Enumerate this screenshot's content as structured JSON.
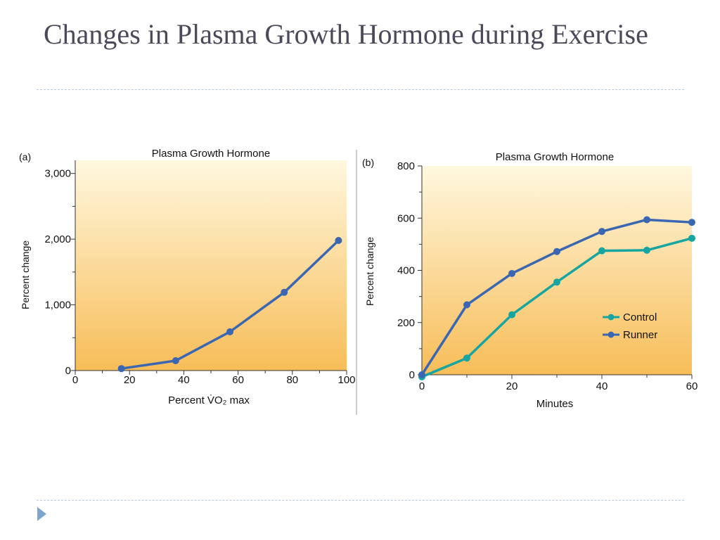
{
  "slide": {
    "title": "Changes in Plasma Growth Hormone during Exercise"
  },
  "chart_data": [
    {
      "type": "line",
      "panel_label": "(a)",
      "title": "Plasma Growth Hormone",
      "xlabel": "Percent V̇O₂ max",
      "ylabel": "Percent change",
      "xlim": [
        0,
        100
      ],
      "ylim": [
        0,
        3200
      ],
      "x_ticks": [
        0,
        20,
        40,
        60,
        80,
        100
      ],
      "x_tick_labels": [
        "0",
        "20",
        "40",
        "60",
        "80",
        "100"
      ],
      "y_ticks": [
        0,
        1000,
        2000,
        3000
      ],
      "y_tick_labels": [
        "0",
        "1,000",
        "2,000",
        "3,000"
      ],
      "series": [
        {
          "color": "#3a66b2",
          "x": [
            17,
            37,
            57,
            77,
            97
          ],
          "y": [
            30,
            150,
            590,
            1190,
            1980
          ]
        }
      ],
      "background_gradient": [
        "#fff8df",
        "#f7bd58"
      ],
      "grid": false,
      "legend": "none"
    },
    {
      "type": "line",
      "panel_label": "(b)",
      "title": "Plasma Growth Hormone",
      "xlabel": "Minutes",
      "ylabel": "Percent change",
      "xlim": [
        0,
        60
      ],
      "ylim": [
        0,
        800
      ],
      "x_ticks": [
        0,
        20,
        40,
        60
      ],
      "x_tick_labels": [
        "0",
        "20",
        "40",
        "60"
      ],
      "y_ticks": [
        0,
        200,
        400,
        600,
        800
      ],
      "y_tick_labels": [
        "0",
        "200",
        "400",
        "600",
        "800"
      ],
      "series": [
        {
          "name": "Control",
          "color": "#16a5a0",
          "x": [
            0,
            10,
            20,
            30,
            40,
            50,
            60
          ],
          "y": [
            -8,
            64,
            230,
            355,
            475,
            477,
            523
          ]
        },
        {
          "name": "Runner",
          "color": "#3a66b2",
          "x": [
            0,
            10,
            20,
            30,
            40,
            50,
            60
          ],
          "y": [
            0,
            268,
            388,
            472,
            549,
            594,
            584
          ]
        }
      ],
      "background_gradient": [
        "#fff8df",
        "#f7bd58"
      ],
      "grid": false,
      "legend": "right-middle"
    }
  ]
}
